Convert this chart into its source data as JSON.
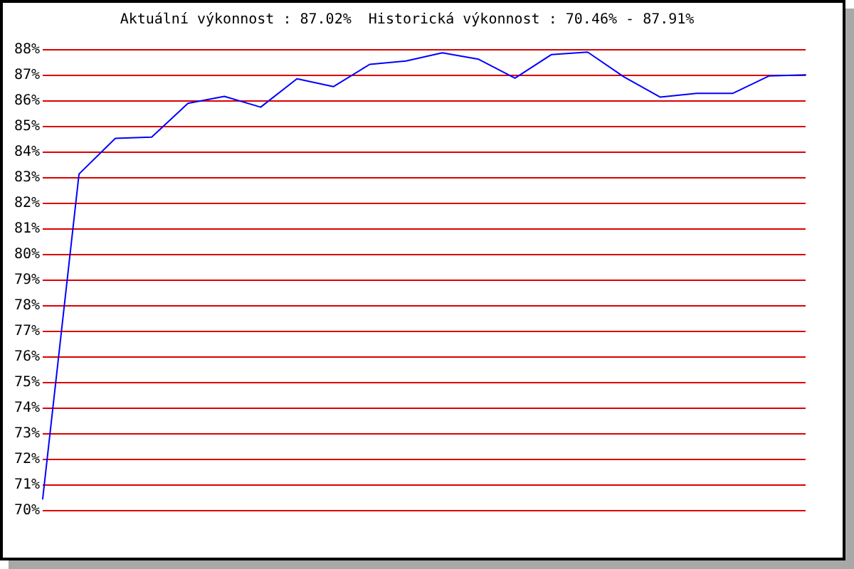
{
  "chart_data": {
    "type": "line",
    "title": "Aktuální výkonnost : 87.02%  Historická výkonnost : 70.46% - 87.91%",
    "categories": [
      null,
      null,
      null,
      null,
      null,
      null,
      null,
      null,
      null,
      null,
      null,
      null,
      null,
      null,
      null,
      null,
      null,
      null,
      null,
      null,
      null,
      null
    ],
    "series": [
      {
        "color": "#0000ff",
        "values": [
          70.46,
          83.15,
          84.54,
          84.59,
          85.91,
          86.18,
          85.76,
          86.87,
          86.56,
          87.43,
          87.56,
          87.88,
          87.63,
          86.89,
          87.81,
          87.91,
          86.94,
          86.15,
          86.3,
          86.3,
          86.98,
          87.02
        ]
      }
    ],
    "ylim": [
      70,
      88
    ],
    "yticks": [
      {
        "value": 70,
        "label": "70%"
      },
      {
        "value": 71,
        "label": "71%"
      },
      {
        "value": 72,
        "label": "72%"
      },
      {
        "value": 73,
        "label": "73%"
      },
      {
        "value": 74,
        "label": "74%"
      },
      {
        "value": 75,
        "label": "75%"
      },
      {
        "value": 76,
        "label": "76%"
      },
      {
        "value": 77,
        "label": "77%"
      },
      {
        "value": 78,
        "label": "78%"
      },
      {
        "value": 79,
        "label": "79%"
      },
      {
        "value": 80,
        "label": "80%"
      },
      {
        "value": 81,
        "label": "81%"
      },
      {
        "value": 82,
        "label": "82%"
      },
      {
        "value": 83,
        "label": "83%"
      },
      {
        "value": 84,
        "label": "84%"
      },
      {
        "value": 85,
        "label": "85%"
      },
      {
        "value": 86,
        "label": "86%"
      },
      {
        "value": 87,
        "label": "87%"
      },
      {
        "value": 88,
        "label": "88%"
      }
    ],
    "grid": "y",
    "legend": false,
    "tick_labels": "y",
    "marker": "none",
    "line_style": "solid"
  }
}
